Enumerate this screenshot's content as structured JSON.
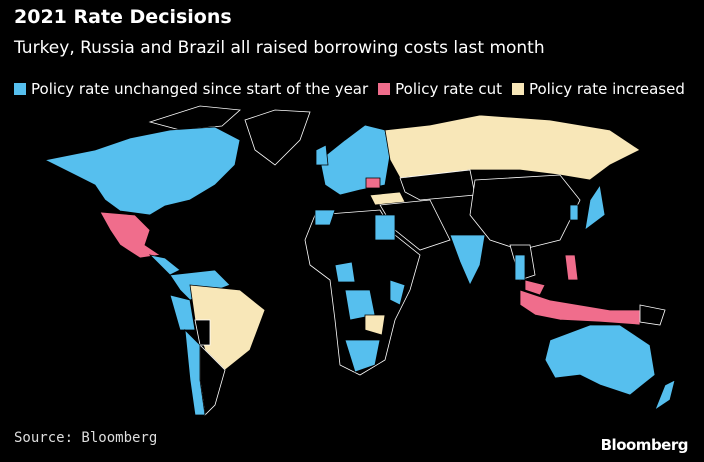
{
  "header": {
    "title": "2021 Rate Decisions",
    "subtitle": "Turkey, Russia and Brazil all raised borrowing costs last month"
  },
  "legend": [
    {
      "label": "Policy rate unchanged since start of the year",
      "color": "#56bfee"
    },
    {
      "label": "Policy rate cut",
      "color": "#f06d8c"
    },
    {
      "label": "Policy rate increased",
      "color": "#f8e7b8"
    }
  ],
  "footer": {
    "source": "Source: Bloomberg",
    "brand": "Bloomberg"
  }
}
